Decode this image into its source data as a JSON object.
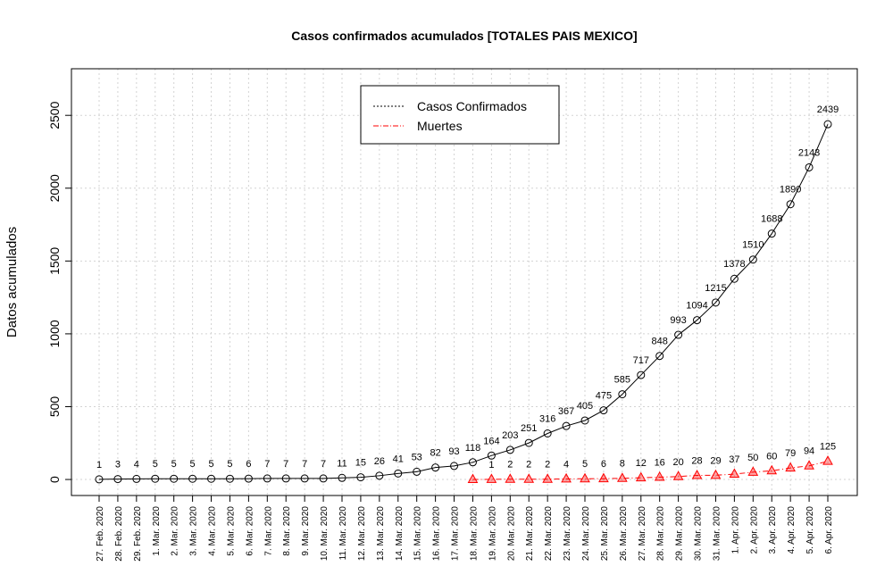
{
  "chart_data": {
    "type": "line",
    "title": "Casos confirmados acumulados [TOTALES PAIS MEXICO]",
    "y_label": "Datos acumulados",
    "categories": [
      "27. Feb. 2020",
      "28. Feb. 2020",
      "29. Feb. 2020",
      "1. Mar. 2020",
      "2. Mar. 2020",
      "3. Mar. 2020",
      "4. Mar. 2020",
      "5. Mar. 2020",
      "6. Mar. 2020",
      "7. Mar. 2020",
      "8. Mar. 2020",
      "9. Mar. 2020",
      "10. Mar. 2020",
      "11. Mar. 2020",
      "12. Mar. 2020",
      "13. Mar. 2020",
      "14. Mar. 2020",
      "15. Mar. 2020",
      "16. Mar. 2020",
      "17. Mar. 2020",
      "18. Mar. 2020",
      "19. Mar. 2020",
      "20. Mar. 2020",
      "21. Mar. 2020",
      "22. Mar. 2020",
      "23. Mar. 2020",
      "24. Mar. 2020",
      "25. Mar. 2020",
      "26. Mar. 2020",
      "27. Mar. 2020",
      "28. Mar. 2020",
      "29. Mar. 2020",
      "30. Mar. 2020",
      "31. Mar. 2020",
      "1. Apr. 2020",
      "2. Apr. 2020",
      "3. Apr. 2020",
      "4. Apr. 2020",
      "5. Apr. 2020",
      "6. Apr. 2020"
    ],
    "series": [
      {
        "name": "Casos Confirmados",
        "color": "#000000",
        "marker": "circle",
        "values": [
          1,
          3,
          4,
          5,
          5,
          5,
          5,
          5,
          6,
          7,
          7,
          7,
          7,
          11,
          15,
          26,
          41,
          53,
          82,
          93,
          118,
          164,
          203,
          251,
          316,
          367,
          405,
          475,
          585,
          717,
          848,
          993,
          1094,
          1215,
          1378,
          1510,
          1688,
          1890,
          2143,
          2439
        ]
      },
      {
        "name": "Muertes",
        "color": "#ff0000",
        "marker": "triangle",
        "values": [
          null,
          null,
          null,
          null,
          null,
          null,
          null,
          null,
          null,
          null,
          null,
          null,
          null,
          null,
          null,
          null,
          null,
          null,
          null,
          null,
          0,
          1,
          2,
          2,
          2,
          4,
          5,
          6,
          8,
          12,
          16,
          20,
          28,
          29,
          37,
          50,
          60,
          79,
          94,
          125
        ],
        "value_labels": [
          null,
          null,
          null,
          null,
          null,
          null,
          null,
          null,
          null,
          null,
          null,
          null,
          null,
          null,
          null,
          null,
          null,
          null,
          null,
          null,
          null,
          "1",
          "2",
          "2",
          "2",
          "4",
          "5",
          "6",
          "8",
          "12",
          "16",
          "20",
          "28",
          "29",
          "37",
          "50",
          "60",
          "79",
          "94",
          "125"
        ]
      }
    ],
    "ylim": [
      -110,
      2820
    ],
    "yticks": [
      0,
      500,
      1000,
      1500,
      2000,
      2500
    ],
    "grid": true,
    "legend": "top"
  }
}
